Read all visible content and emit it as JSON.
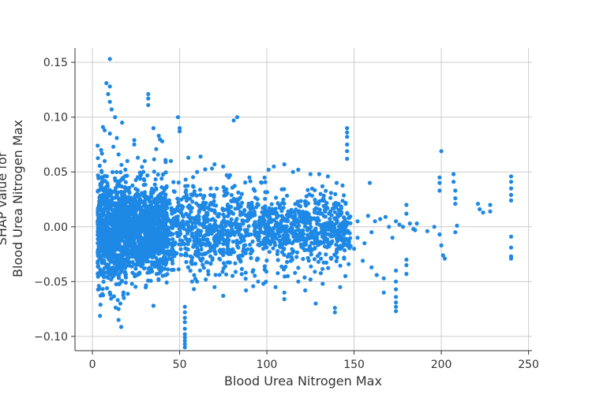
{
  "chart_data": {
    "type": "scatter",
    "title": "",
    "xlabel": "Blood Urea Nitrogen Max",
    "ylabel_lines": [
      "SHAP value for",
      "Blood Urea Nitrogen Max"
    ],
    "xlim": [
      -10,
      252
    ],
    "ylim": [
      -0.113,
      0.163
    ],
    "x_ticks": [
      0,
      50,
      100,
      150,
      200,
      250
    ],
    "x_tick_labels": [
      "0",
      "50",
      "100",
      "150",
      "200",
      "250"
    ],
    "y_ticks": [
      -0.1,
      -0.05,
      0.0,
      0.05,
      0.1,
      0.15
    ],
    "y_tick_labels": [
      "−0.10",
      "−0.05",
      "0.00",
      "0.05",
      "0.10",
      "0.15"
    ],
    "grid": true,
    "legend": "none",
    "point_color": "#1e88e5",
    "dense_band": {
      "description": "dense cloud of points",
      "x_range": [
        3,
        148
      ],
      "y_center": -0.003,
      "y_spread": 0.055
    },
    "points": [
      [
        10,
        0.153
      ],
      [
        8,
        0.131
      ],
      [
        10,
        0.128
      ],
      [
        9,
        0.121
      ],
      [
        10,
        0.114
      ],
      [
        11,
        0.107
      ],
      [
        13,
        0.1
      ],
      [
        17,
        0.095
      ],
      [
        6,
        0.091
      ],
      [
        7,
        0.088
      ],
      [
        10,
        0.085
      ],
      [
        14,
        0.081
      ],
      [
        32,
        0.121
      ],
      [
        32,
        0.117
      ],
      [
        32,
        0.111
      ],
      [
        49,
        0.1
      ],
      [
        50,
        0.09
      ],
      [
        50,
        0.087
      ],
      [
        35,
        0.09
      ],
      [
        38,
        0.083
      ],
      [
        40,
        0.078
      ],
      [
        24,
        0.079
      ],
      [
        24,
        0.075
      ],
      [
        83,
        0.1
      ],
      [
        81,
        0.097
      ],
      [
        55,
        0.063
      ],
      [
        62,
        0.064
      ],
      [
        70,
        0.057
      ],
      [
        146,
        0.09
      ],
      [
        146,
        0.086
      ],
      [
        146,
        0.082
      ],
      [
        146,
        0.075
      ],
      [
        146,
        0.069
      ],
      [
        146,
        0.062
      ],
      [
        159,
        0.04
      ],
      [
        200,
        0.069
      ],
      [
        199,
        0.045
      ],
      [
        199,
        0.04
      ],
      [
        199,
        0.033
      ],
      [
        207,
        0.048
      ],
      [
        207,
        0.041
      ],
      [
        208,
        0.033
      ],
      [
        208,
        0.026
      ],
      [
        208,
        0.021
      ],
      [
        221,
        0.021
      ],
      [
        222,
        0.016
      ],
      [
        224,
        0.013
      ],
      [
        228,
        0.02
      ],
      [
        228,
        0.014
      ],
      [
        240,
        0.046
      ],
      [
        240,
        0.041
      ],
      [
        240,
        0.035
      ],
      [
        240,
        0.029
      ],
      [
        240,
        0.024
      ],
      [
        240,
        -0.009
      ],
      [
        240,
        -0.019
      ],
      [
        240,
        -0.027
      ],
      [
        240,
        -0.029
      ],
      [
        200,
        -0.017
      ],
      [
        201,
        -0.026
      ],
      [
        202,
        -0.029
      ],
      [
        199,
        -0.007
      ],
      [
        208,
        -0.005
      ],
      [
        209,
        0.001
      ],
      [
        196,
        0.0
      ],
      [
        192,
        -0.004
      ],
      [
        185,
        -0.003
      ],
      [
        186,
        0.003
      ],
      [
        180,
        0.02
      ],
      [
        180,
        0.012
      ],
      [
        180,
        -0.03
      ],
      [
        180,
        -0.035
      ],
      [
        180,
        -0.043
      ],
      [
        174,
        -0.05
      ],
      [
        174,
        -0.057
      ],
      [
        174,
        -0.064
      ],
      [
        174,
        -0.069
      ],
      [
        174,
        -0.073
      ],
      [
        174,
        -0.077
      ],
      [
        174,
        -0.04
      ],
      [
        167,
        -0.047
      ],
      [
        167,
        -0.06
      ],
      [
        163,
        -0.044
      ],
      [
        160,
        -0.037
      ],
      [
        155,
        -0.031
      ],
      [
        139,
        -0.078
      ],
      [
        139,
        -0.074
      ],
      [
        128,
        -0.07
      ],
      [
        122,
        -0.058
      ],
      [
        110,
        -0.066
      ],
      [
        110,
        -0.06
      ],
      [
        105,
        -0.055
      ],
      [
        53,
        -0.073
      ],
      [
        53,
        -0.078
      ],
      [
        53,
        -0.083
      ],
      [
        53,
        -0.087
      ],
      [
        53,
        -0.093
      ],
      [
        53,
        -0.098
      ],
      [
        53,
        -0.101
      ],
      [
        53,
        -0.104
      ],
      [
        53,
        -0.107
      ],
      [
        53,
        -0.11
      ],
      [
        15,
        -0.085
      ],
      [
        15,
        -0.075
      ],
      [
        16,
        -0.07
      ],
      [
        18,
        -0.065
      ],
      [
        35,
        -0.072
      ],
      [
        10,
        -0.06
      ],
      [
        3,
        -0.033
      ],
      [
        3,
        0.074
      ],
      [
        5,
        0.07
      ],
      [
        7,
        0.06
      ],
      [
        12,
        0.073
      ],
      [
        15,
        0.066
      ],
      [
        20,
        0.06
      ],
      [
        26,
        0.063
      ],
      [
        30,
        0.06
      ],
      [
        42,
        0.059
      ],
      [
        45,
        0.06
      ],
      [
        60,
        0.05
      ],
      [
        75,
        0.055
      ],
      [
        77,
        0.047
      ],
      [
        90,
        0.045
      ],
      [
        101,
        0.052
      ],
      [
        104,
        0.055
      ],
      [
        110,
        0.057
      ],
      [
        115,
        0.05
      ],
      [
        118,
        0.052
      ],
      [
        125,
        0.048
      ],
      [
        130,
        0.048
      ],
      [
        135,
        0.046
      ],
      [
        140,
        0.04
      ],
      [
        60,
        -0.05
      ],
      [
        65,
        -0.048
      ],
      [
        70,
        -0.055
      ],
      [
        75,
        -0.063
      ],
      [
        88,
        -0.058
      ],
      [
        95,
        -0.05
      ],
      [
        98,
        -0.052
      ],
      [
        112,
        -0.045
      ],
      [
        118,
        -0.05
      ],
      [
        125,
        -0.048
      ],
      [
        132,
        -0.052
      ],
      [
        142,
        -0.055
      ],
      [
        145,
        -0.045
      ],
      [
        150,
        -0.02
      ],
      [
        152,
        -0.01
      ],
      [
        152,
        0.005
      ],
      [
        156,
        -0.015
      ],
      [
        158,
        0.01
      ],
      [
        160,
        -0.005
      ],
      [
        162,
        0.005
      ],
      [
        165,
        0.007
      ],
      [
        168,
        0.009
      ],
      [
        170,
        0.0
      ],
      [
        172,
        -0.01
      ],
      [
        174,
        0.005
      ],
      [
        176,
        0.002
      ],
      [
        178,
        0.0
      ],
      [
        182,
        0.003
      ],
      [
        184,
        -0.002
      ]
    ]
  }
}
